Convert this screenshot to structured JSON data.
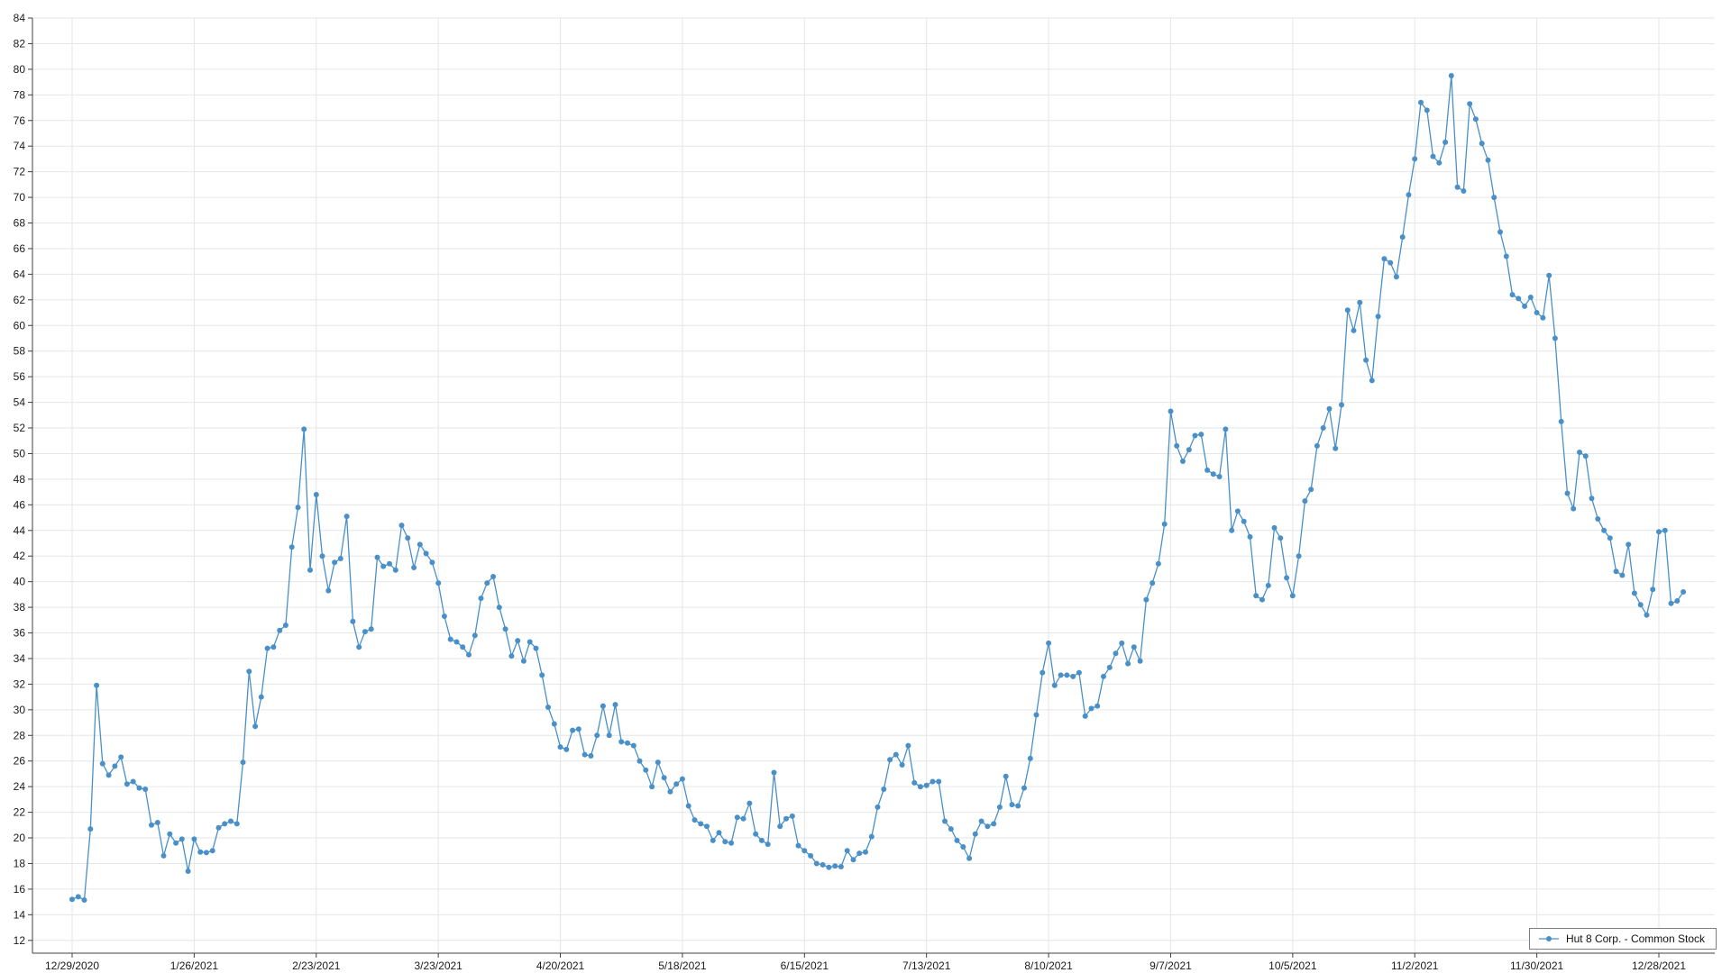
{
  "chart_data": {
    "type": "line",
    "title": "",
    "xlabel": "",
    "ylabel": "",
    "grid": true,
    "marker": "circle",
    "legend_position": "bottom-right",
    "ylim": [
      12,
      84
    ],
    "y_tick_step": 2,
    "x_ticks": [
      {
        "index": 0,
        "label": "12/29/2020"
      },
      {
        "index": 20,
        "label": "1/26/2021"
      },
      {
        "index": 40,
        "label": "2/23/2021"
      },
      {
        "index": 60,
        "label": "3/23/2021"
      },
      {
        "index": 80,
        "label": "4/20/2021"
      },
      {
        "index": 100,
        "label": "5/18/2021"
      },
      {
        "index": 120,
        "label": "6/15/2021"
      },
      {
        "index": 140,
        "label": "7/13/2021"
      },
      {
        "index": 160,
        "label": "8/10/2021"
      },
      {
        "index": 180,
        "label": "9/7/2021"
      },
      {
        "index": 200,
        "label": "10/5/2021"
      },
      {
        "index": 220,
        "label": "11/2/2021"
      },
      {
        "index": 240,
        "label": "11/30/2021"
      },
      {
        "index": 260,
        "label": "12/28/2021"
      }
    ],
    "x_unit": "trading days (one point per weekday, 12/29/2020 - 12/31/2021)",
    "colors": {
      "series": "#4a90c8",
      "grid": "#e6e6e6",
      "axis": "#404040",
      "label": "#1a1a1a",
      "legend_border": "#7f7f7f"
    },
    "series": [
      {
        "name": "Hut 8 Corp. - Common Stock",
        "color": "#4a90c8",
        "values": [
          15.2,
          15.4,
          15.15,
          20.7,
          31.9,
          25.8,
          24.9,
          25.6,
          26.3,
          24.2,
          24.4,
          23.9,
          23.8,
          21.0,
          21.2,
          18.6,
          20.3,
          19.6,
          19.9,
          17.4,
          19.9,
          18.9,
          18.85,
          19.0,
          20.8,
          21.1,
          21.3,
          21.1,
          25.9,
          33.0,
          28.7,
          31.0,
          34.8,
          34.9,
          36.2,
          36.6,
          42.7,
          45.8,
          51.9,
          40.9,
          46.8,
          42.0,
          39.3,
          41.5,
          41.8,
          45.1,
          36.9,
          34.9,
          36.1,
          36.3,
          41.9,
          41.2,
          41.4,
          40.9,
          44.4,
          43.4,
          41.1,
          42.9,
          42.2,
          41.5,
          39.9,
          37.3,
          35.5,
          35.3,
          34.9,
          34.3,
          35.8,
          38.7,
          39.9,
          40.4,
          38.0,
          36.3,
          34.2,
          35.4,
          33.8,
          35.3,
          34.8,
          32.7,
          30.2,
          28.9,
          27.1,
          26.9,
          28.4,
          28.5,
          26.5,
          26.4,
          28.0,
          30.3,
          28.0,
          30.4,
          27.5,
          27.4,
          27.2,
          26.0,
          25.3,
          24.0,
          25.9,
          24.7,
          23.6,
          24.2,
          24.6,
          22.5,
          21.4,
          21.1,
          20.9,
          19.8,
          20.4,
          19.7,
          19.6,
          21.6,
          21.5,
          22.7,
          20.3,
          19.8,
          19.5,
          25.1,
          20.9,
          21.5,
          21.7,
          19.4,
          19.0,
          18.6,
          18.0,
          17.9,
          17.7,
          17.8,
          17.75,
          19.0,
          18.3,
          18.8,
          18.9,
          20.1,
          22.4,
          23.8,
          26.1,
          26.5,
          25.7,
          27.2,
          24.3,
          24.0,
          24.1,
          24.4,
          24.4,
          21.3,
          20.7,
          19.8,
          19.3,
          18.4,
          20.3,
          21.3,
          20.9,
          21.1,
          22.4,
          24.8,
          22.6,
          22.5,
          23.9,
          26.2,
          29.6,
          32.9,
          35.2,
          31.9,
          32.7,
          32.7,
          32.6,
          32.9,
          29.5,
          30.1,
          30.3,
          32.6,
          33.3,
          34.4,
          35.2,
          33.6,
          34.9,
          33.8,
          38.6,
          39.9,
          41.4,
          44.5,
          53.3,
          50.6,
          49.4,
          50.3,
          51.4,
          51.5,
          48.7,
          48.4,
          48.2,
          51.9,
          44.0,
          45.5,
          44.7,
          43.5,
          38.9,
          38.6,
          39.7,
          44.2,
          43.4,
          40.3,
          38.9,
          42.0,
          46.3,
          47.2,
          50.6,
          52.0,
          53.5,
          50.4,
          53.8,
          61.2,
          59.6,
          61.8,
          57.3,
          55.7,
          60.7,
          65.2,
          64.9,
          63.8,
          66.9,
          70.2,
          73.0,
          77.4,
          76.8,
          73.2,
          72.7,
          74.3,
          79.5,
          70.8,
          70.5,
          77.3,
          76.1,
          74.2,
          72.9,
          70.0,
          67.3,
          65.4,
          62.4,
          62.1,
          61.5,
          62.2,
          61.0,
          60.6,
          63.9,
          59.0,
          52.5,
          46.9,
          45.7,
          50.1,
          49.8,
          46.5,
          44.9,
          44.0,
          43.4,
          40.8,
          40.5,
          42.9,
          39.1,
          38.2,
          37.4,
          39.4,
          43.9,
          44.0,
          38.3,
          38.5,
          39.2
        ]
      }
    ]
  },
  "legend": {
    "label": "Hut 8 Corp. - Common Stock"
  }
}
